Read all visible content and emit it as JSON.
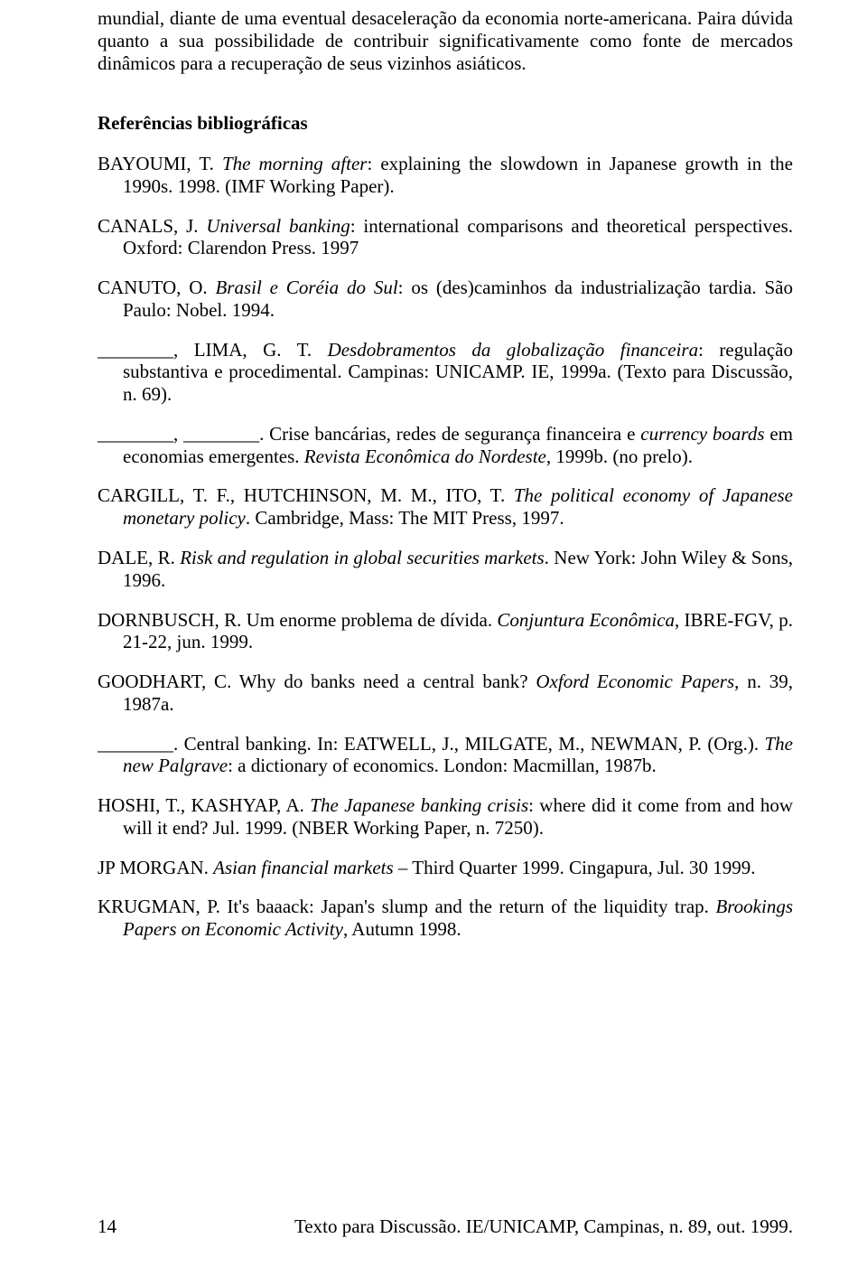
{
  "intro": {
    "text": "mundial, diante de uma eventual desaceleração da economia norte-americana. Paira dúvida quanto a sua possibilidade de contribuir significativamente como fonte de mercados dinâmicos para a recuperação de seus vizinhos asiáticos."
  },
  "heading": "Referências bibliográficas",
  "refs": {
    "r1": {
      "a": "BAYOUMI, T.  ",
      "i": "The morning after",
      "b": ": explaining the slowdown in Japanese growth in the 1990s.  1998.  (IMF Working Paper)."
    },
    "r2": {
      "a": "CANALS, J.  ",
      "i": "Universal banking",
      "b": ": international comparisons and theoretical perspectives. Oxford: Clarendon Press. 1997"
    },
    "r3": {
      "a": "CANUTO, O.  ",
      "i": "Brasil e Coréia do Sul",
      "b": ": os (des)caminhos da industrialização tardia.  São Paulo: Nobel. 1994."
    },
    "r4": {
      "a": "________,  LIMA,  G.  T.    ",
      "i": "Desdobramentos  da  globalização  financeira",
      "b": ":  regulação substantiva e procedimental.  Campinas: UNICAMP.  IE, 1999a.  (Texto para Discussão, n. 69)."
    },
    "r5": {
      "a": "________, ________.  Crise bancárias, redes de segurança financeira e ",
      "i1": "currency boards",
      "b": " em economias emergentes.  ",
      "i2": "Revista Econômica do Nordeste",
      "c": ", 1999b.  (no prelo)."
    },
    "r6": {
      "a": "CARGILL, T. F., HUTCHINSON, M. M., ITO, T.  ",
      "i": "The political economy of Japanese monetary policy",
      "b": ".  Cambridge, Mass: The MIT Press, 1997."
    },
    "r7": {
      "a": "DALE, R.  ",
      "i": "Risk and regulation in global securities markets",
      "b": ".  New York: John Wiley & Sons, 1996."
    },
    "r8": {
      "a": "DORNBUSCH, R.  Um enorme problema de dívida.  ",
      "i": "Conjuntura Econômica",
      "b": ", IBRE-FGV, p. 21-22, jun. 1999."
    },
    "r9": {
      "a": "GOODHART, C.  Why do banks need a central bank?  ",
      "i": "Oxford Economic Papers",
      "b": ", n. 39, 1987a."
    },
    "r10": {
      "a": "________.  Central banking.  In: EATWELL, J., MILGATE, M., NEWMAN, P. (Org.). ",
      "i": "The new Palgrave",
      "b": ": a dictionary of economics.  London: Macmillan, 1987b."
    },
    "r11": {
      "a": "HOSHI, T., KASHYAP, A.  ",
      "i": "The Japanese banking crisis",
      "b": ": where did it come from and how will it  end?  Jul. 1999.  (NBER Working Paper, n. 7250)."
    },
    "r12": {
      "a": "JP MORGAN.  ",
      "i": "Asian financial markets",
      "b": " – Third Quarter 1999.  Cingapura, Jul. 30 1999."
    },
    "r13": {
      "a": "KRUGMAN, P.  It's baaack: Japan's slump and the return of the liquidity trap.  ",
      "i": "Brookings Papers on Economic Activity",
      "b": ", Autumn 1998."
    }
  },
  "footer": {
    "page": "14",
    "text": "Texto para Discussão. IE/UNICAMP, Campinas, n. 89, out. 1999."
  }
}
